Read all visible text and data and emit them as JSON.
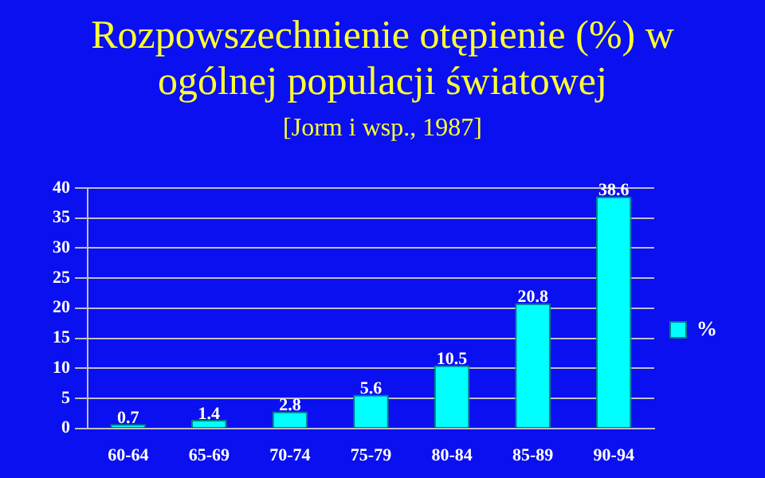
{
  "chart_data": {
    "type": "bar",
    "title": "Rozpowszechnienie otępienie (%) w ogólnej populacji światowej",
    "subtitle": "[Jorm i wsp., 1987]",
    "categories": [
      "60-64",
      "65-69",
      "70-74",
      "75-79",
      "80-84",
      "85-89",
      "90-94"
    ],
    "series": [
      {
        "name": "%",
        "color": "#00ffff",
        "values": [
          0.7,
          1.4,
          2.8,
          5.6,
          10.5,
          20.8,
          38.6
        ]
      }
    ],
    "ylim": [
      0,
      40
    ],
    "yticks": [
      0,
      5,
      10,
      15,
      20,
      25,
      30,
      35,
      40
    ],
    "grid": "y",
    "legend": "right",
    "data_labels": true
  }
}
